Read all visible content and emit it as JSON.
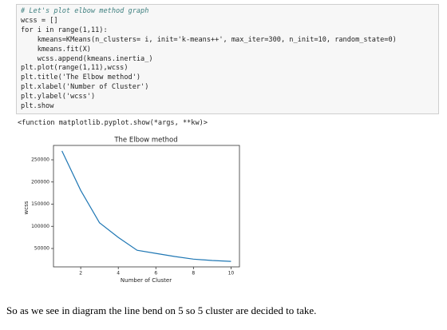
{
  "code": [
    "# Let's plot elbow method graph",
    "wcss = []",
    "for i in range(1,11):",
    "    kmeans=KMeans(n_clusters= i, init='k-means++', max_iter=300, n_init=10, random_state=0)",
    "    kmeans.fit(X)",
    "    wcss.append(kmeans.inertia_)",
    "plt.plot(range(1,11),wcss)",
    "plt.title('The Elbow method')",
    "plt.xlabel('Number of Cluster')",
    "plt.ylabel('wcss')",
    "plt.show"
  ],
  "output": "<function matplotlib.pyplot.show(*args, **kw)>",
  "chart_data": {
    "type": "line",
    "title": "The Elbow method",
    "x_label": "Number of Cluster",
    "y_label": "wcss",
    "x": [
      1,
      2,
      3,
      4,
      5,
      6,
      7,
      8,
      9,
      10
    ],
    "series": [
      {
        "name": "wcss",
        "color": "#1f77b4",
        "values": [
          270000,
          181000,
          108000,
          75000,
          46000,
          39000,
          32000,
          26000,
          23000,
          21000
        ]
      }
    ],
    "xlim": [
      0.55,
      10.45
    ],
    "xticks": [
      2,
      4,
      6,
      8,
      10
    ],
    "ylim": [
      8550,
      282450
    ],
    "yticks": [
      50000,
      100000,
      150000,
      200000,
      250000
    ]
  },
  "caption": "So as we see in diagram the line bend on 5 so 5 cluster are decided to take."
}
